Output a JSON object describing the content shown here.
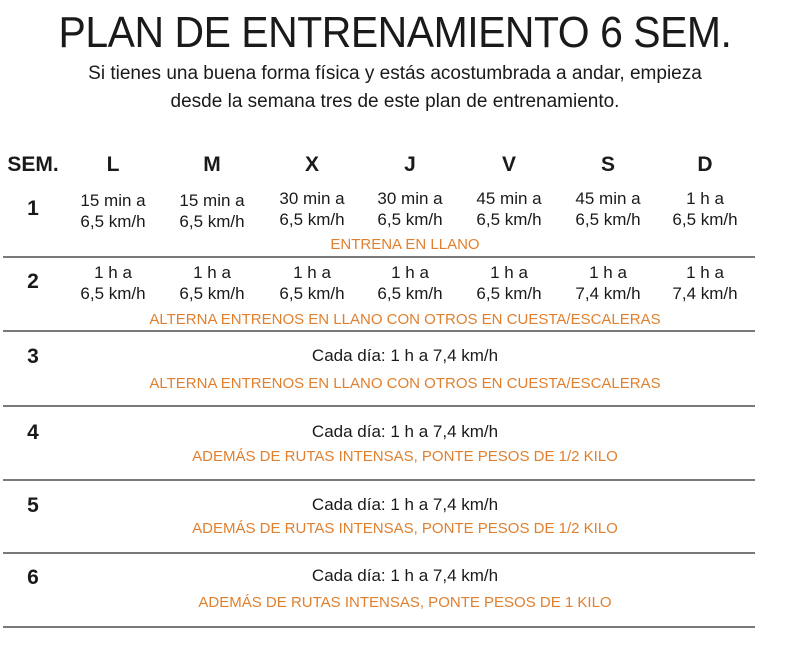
{
  "title": "PLAN DE ENTRENAMIENTO 6 SEM.",
  "subtitle_lines": [
    "Si tienes una buena forma física y estás acostumbrada a andar, empieza",
    "desde la semana tres de este plan de entrenamiento."
  ],
  "accent_color": "#e0802f",
  "headers": [
    "SEM.",
    "L",
    "M",
    "X",
    "J",
    "V",
    "S",
    "D"
  ],
  "weeks": [
    {
      "num": "1",
      "cells": [
        [
          "15 min a",
          "6,5 km/h"
        ],
        [
          "15 min a",
          "6,5 km/h"
        ],
        [
          "30 min a",
          "6,5 km/h"
        ],
        [
          "30 min a",
          "6,5 km/h"
        ],
        [
          "45 min a",
          "6,5 km/h"
        ],
        [
          "45 min a",
          "6,5 km/h"
        ],
        [
          "1 h a",
          "6,5 km/h"
        ]
      ],
      "note": "ENTRENA EN LLANO"
    },
    {
      "num": "2",
      "cells": [
        [
          "1 h a",
          "6,5 km/h"
        ],
        [
          "1 h a",
          "6,5 km/h"
        ],
        [
          "1 h a",
          "6,5 km/h"
        ],
        [
          "1 h a",
          "6,5 km/h"
        ],
        [
          "1 h a",
          "6,5 km/h"
        ],
        [
          "1 h a",
          "7,4 km/h"
        ],
        [
          "1 h a",
          "7,4 km/h"
        ]
      ],
      "note": "ALTERNA ENTRENOS EN LLANO CON OTROS EN CUESTA/ESCALERAS"
    },
    {
      "num": "3",
      "daily": "Cada día: 1 h a 7,4 km/h",
      "note": "ALTERNA ENTRENOS EN LLANO CON OTROS EN CUESTA/ESCALERAS"
    },
    {
      "num": "4",
      "daily": "Cada día: 1 h a 7,4 km/h",
      "note": "ADEMÁS DE RUTAS INTENSAS, PONTE PESOS DE 1/2 KILO"
    },
    {
      "num": "5",
      "daily": "Cada día: 1 h a 7,4 km/h",
      "note": "ADEMÁS DE RUTAS INTENSAS, PONTE PESOS DE 1/2 KILO"
    },
    {
      "num": "6",
      "daily": "Cada día: 1 h a 7,4 km/h",
      "note": "ADEMÁS DE RUTAS INTENSAS, PONTE PESOS DE 1 KILO"
    }
  ]
}
